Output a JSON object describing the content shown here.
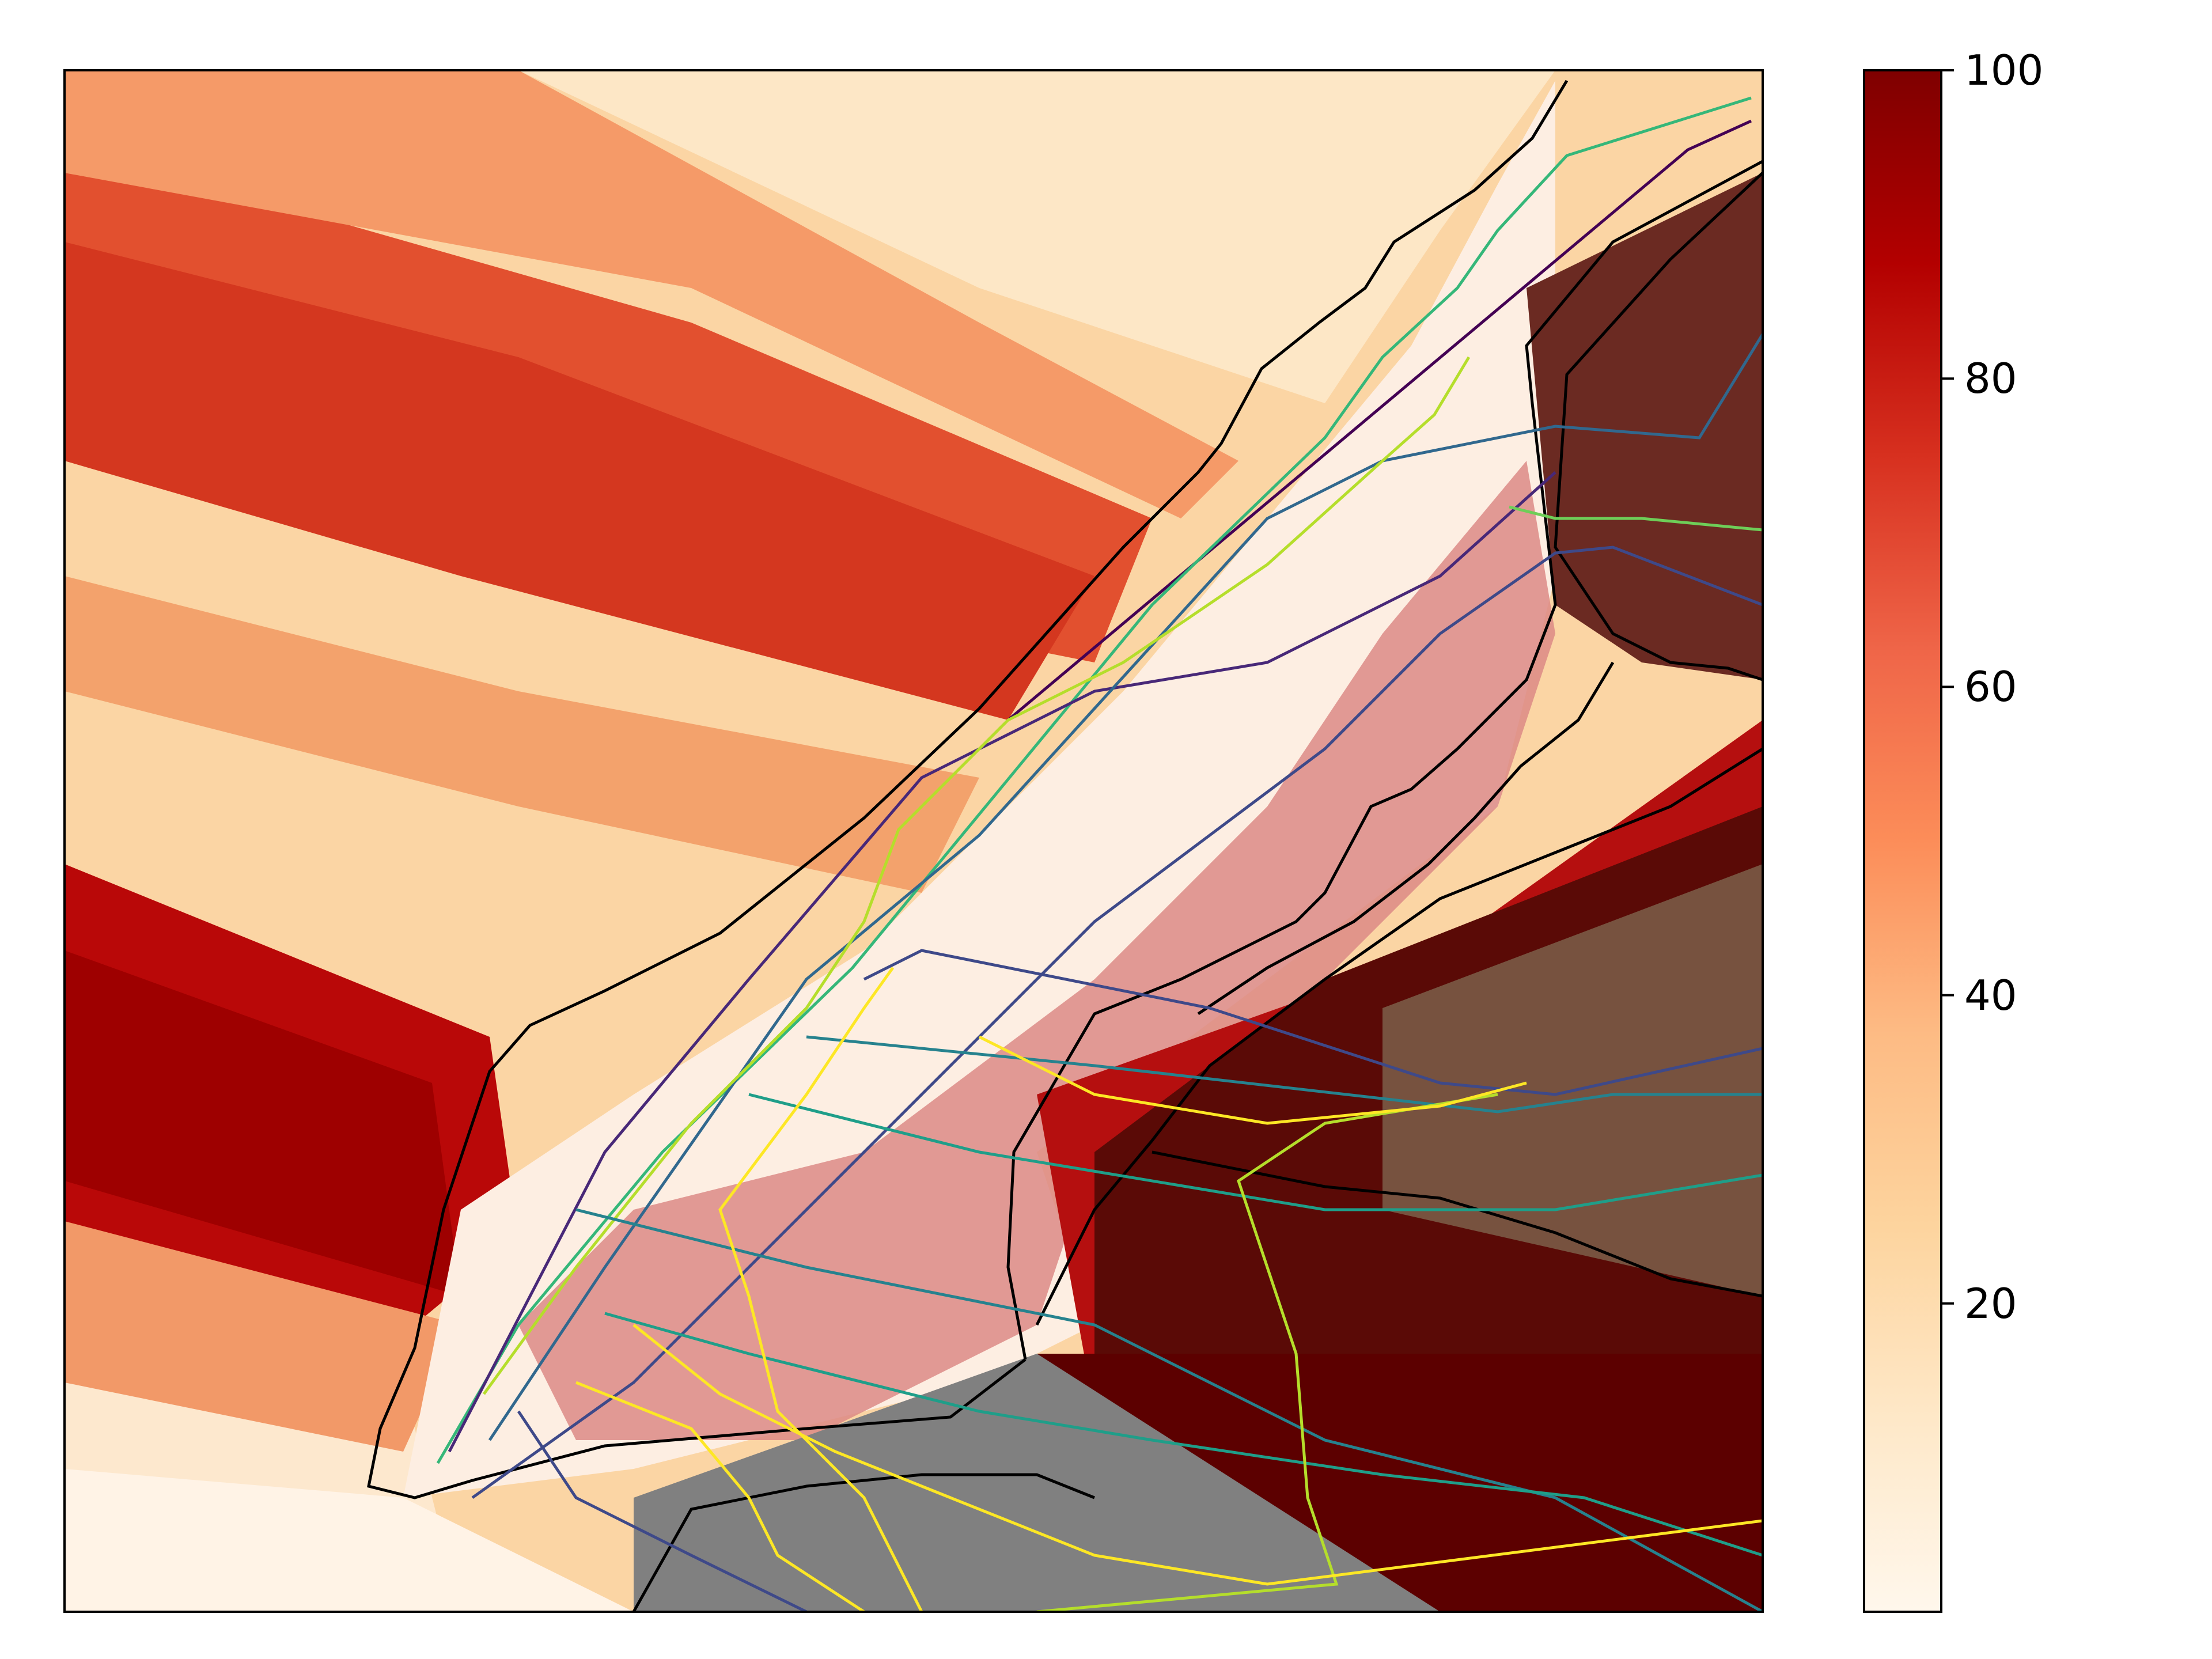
{
  "colormap": {
    "name": "OrRd",
    "stops": [
      "#fff7ec",
      "#fee8c8",
      "#fdd49e",
      "#fdbb84",
      "#fc8d59",
      "#ef6548",
      "#d7301f",
      "#b30000",
      "#7f0000"
    ],
    "range": [
      0,
      100
    ],
    "ticks": [
      "20",
      "40",
      "60",
      "80",
      "100"
    ],
    "tick_values": [
      20,
      40,
      60,
      80,
      100
    ]
  },
  "map": {
    "water_shading": "#7a4a30",
    "land_shading": "#808080",
    "coast_color": "#000000",
    "subway_line_colors": [
      "#440154",
      "#482878",
      "#3e4989",
      "#31688e",
      "#26828e",
      "#1f9e89",
      "#35b779",
      "#6ece58",
      "#b5de2b",
      "#fde725"
    ]
  }
}
